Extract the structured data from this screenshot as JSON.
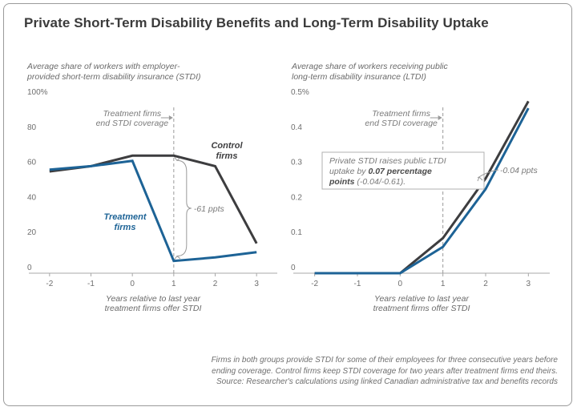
{
  "title": "Private Short-Term Disability Benefits and Long-Term Disability Uptake",
  "footnote": [
    "Firms in both groups provide STDI for some of their employees for three consecutive years before",
    "ending coverage. Control firms keep STDI coverage for two years after treatment firms end theirs.",
    "Source: Researcher's calculations using linked Canadian administrative tax and benefits records"
  ],
  "colors": {
    "control": "#3d3d3f",
    "treatment": "#1d6396",
    "axis": "#a8a8a8",
    "grid_dash": "#9a9a9a"
  },
  "chart_data": [
    {
      "type": "line",
      "title": "",
      "subtitle": [
        "Average share of workers with employer-",
        "provided short-term disability insurance (STDI)"
      ],
      "xlabel": [
        "Years relative to last year",
        "treatment firms offer STDI"
      ],
      "ylabel": "",
      "x": [
        -2,
        -1,
        0,
        1,
        2,
        3
      ],
      "xlim": [
        -2.5,
        3.5
      ],
      "ylim": [
        0,
        100
      ],
      "yticks": [
        0,
        20,
        40,
        60,
        80,
        100
      ],
      "ytick_labels": [
        "0",
        "20",
        "40",
        "60",
        "80",
        "100%"
      ],
      "grid": false,
      "series": [
        {
          "name": "Control firms",
          "label_lines": [
            "Control",
            "firms"
          ],
          "color": "#3d3d3f",
          "values": [
            58,
            61,
            67,
            67,
            61,
            17
          ]
        },
        {
          "name": "Treatment firms",
          "label_lines": [
            "Treatment",
            "firms"
          ],
          "color": "#1d6396",
          "values": [
            59,
            61,
            64,
            7,
            9,
            12
          ]
        }
      ],
      "annotations": {
        "vline_x": 1,
        "vline_text": [
          "Treatment firms",
          "end STDI coverage"
        ],
        "bracket_text": "-61 ppts"
      }
    },
    {
      "type": "line",
      "title": "",
      "subtitle": [
        "Average share of workers receiving public",
        "long-term disability insurance (LTDI)"
      ],
      "xlabel": [
        "Years relative to last year",
        "treatment firms offer STDI"
      ],
      "ylabel": "",
      "x": [
        -2,
        -1,
        0,
        1,
        2,
        3
      ],
      "xlim": [
        -2.5,
        3.5
      ],
      "ylim": [
        0,
        0.5
      ],
      "yticks": [
        0,
        0.1,
        0.2,
        0.3,
        0.4,
        0.5
      ],
      "ytick_labels": [
        "0",
        "0.1",
        "0.2",
        "0.3",
        "0.4",
        "0.5%"
      ],
      "grid": false,
      "series": [
        {
          "name": "Control firms",
          "color": "#3d3d3f",
          "values": [
            0,
            0,
            0,
            0.1,
            0.27,
            0.49
          ]
        },
        {
          "name": "Treatment firms",
          "color": "#1d6396",
          "values": [
            0,
            0,
            0,
            0.075,
            0.24,
            0.47
          ]
        }
      ],
      "annotations": {
        "vline_x": 1,
        "vline_text": [
          "Treatment firms",
          "end STDI coverage"
        ],
        "box_text": [
          "Private STDI raises public LTDI",
          "uptake by",
          "0.07 percentage",
          "points",
          "(-0.04/-0.61)."
        ],
        "bracket_text": "-0.04 ppts"
      }
    }
  ]
}
